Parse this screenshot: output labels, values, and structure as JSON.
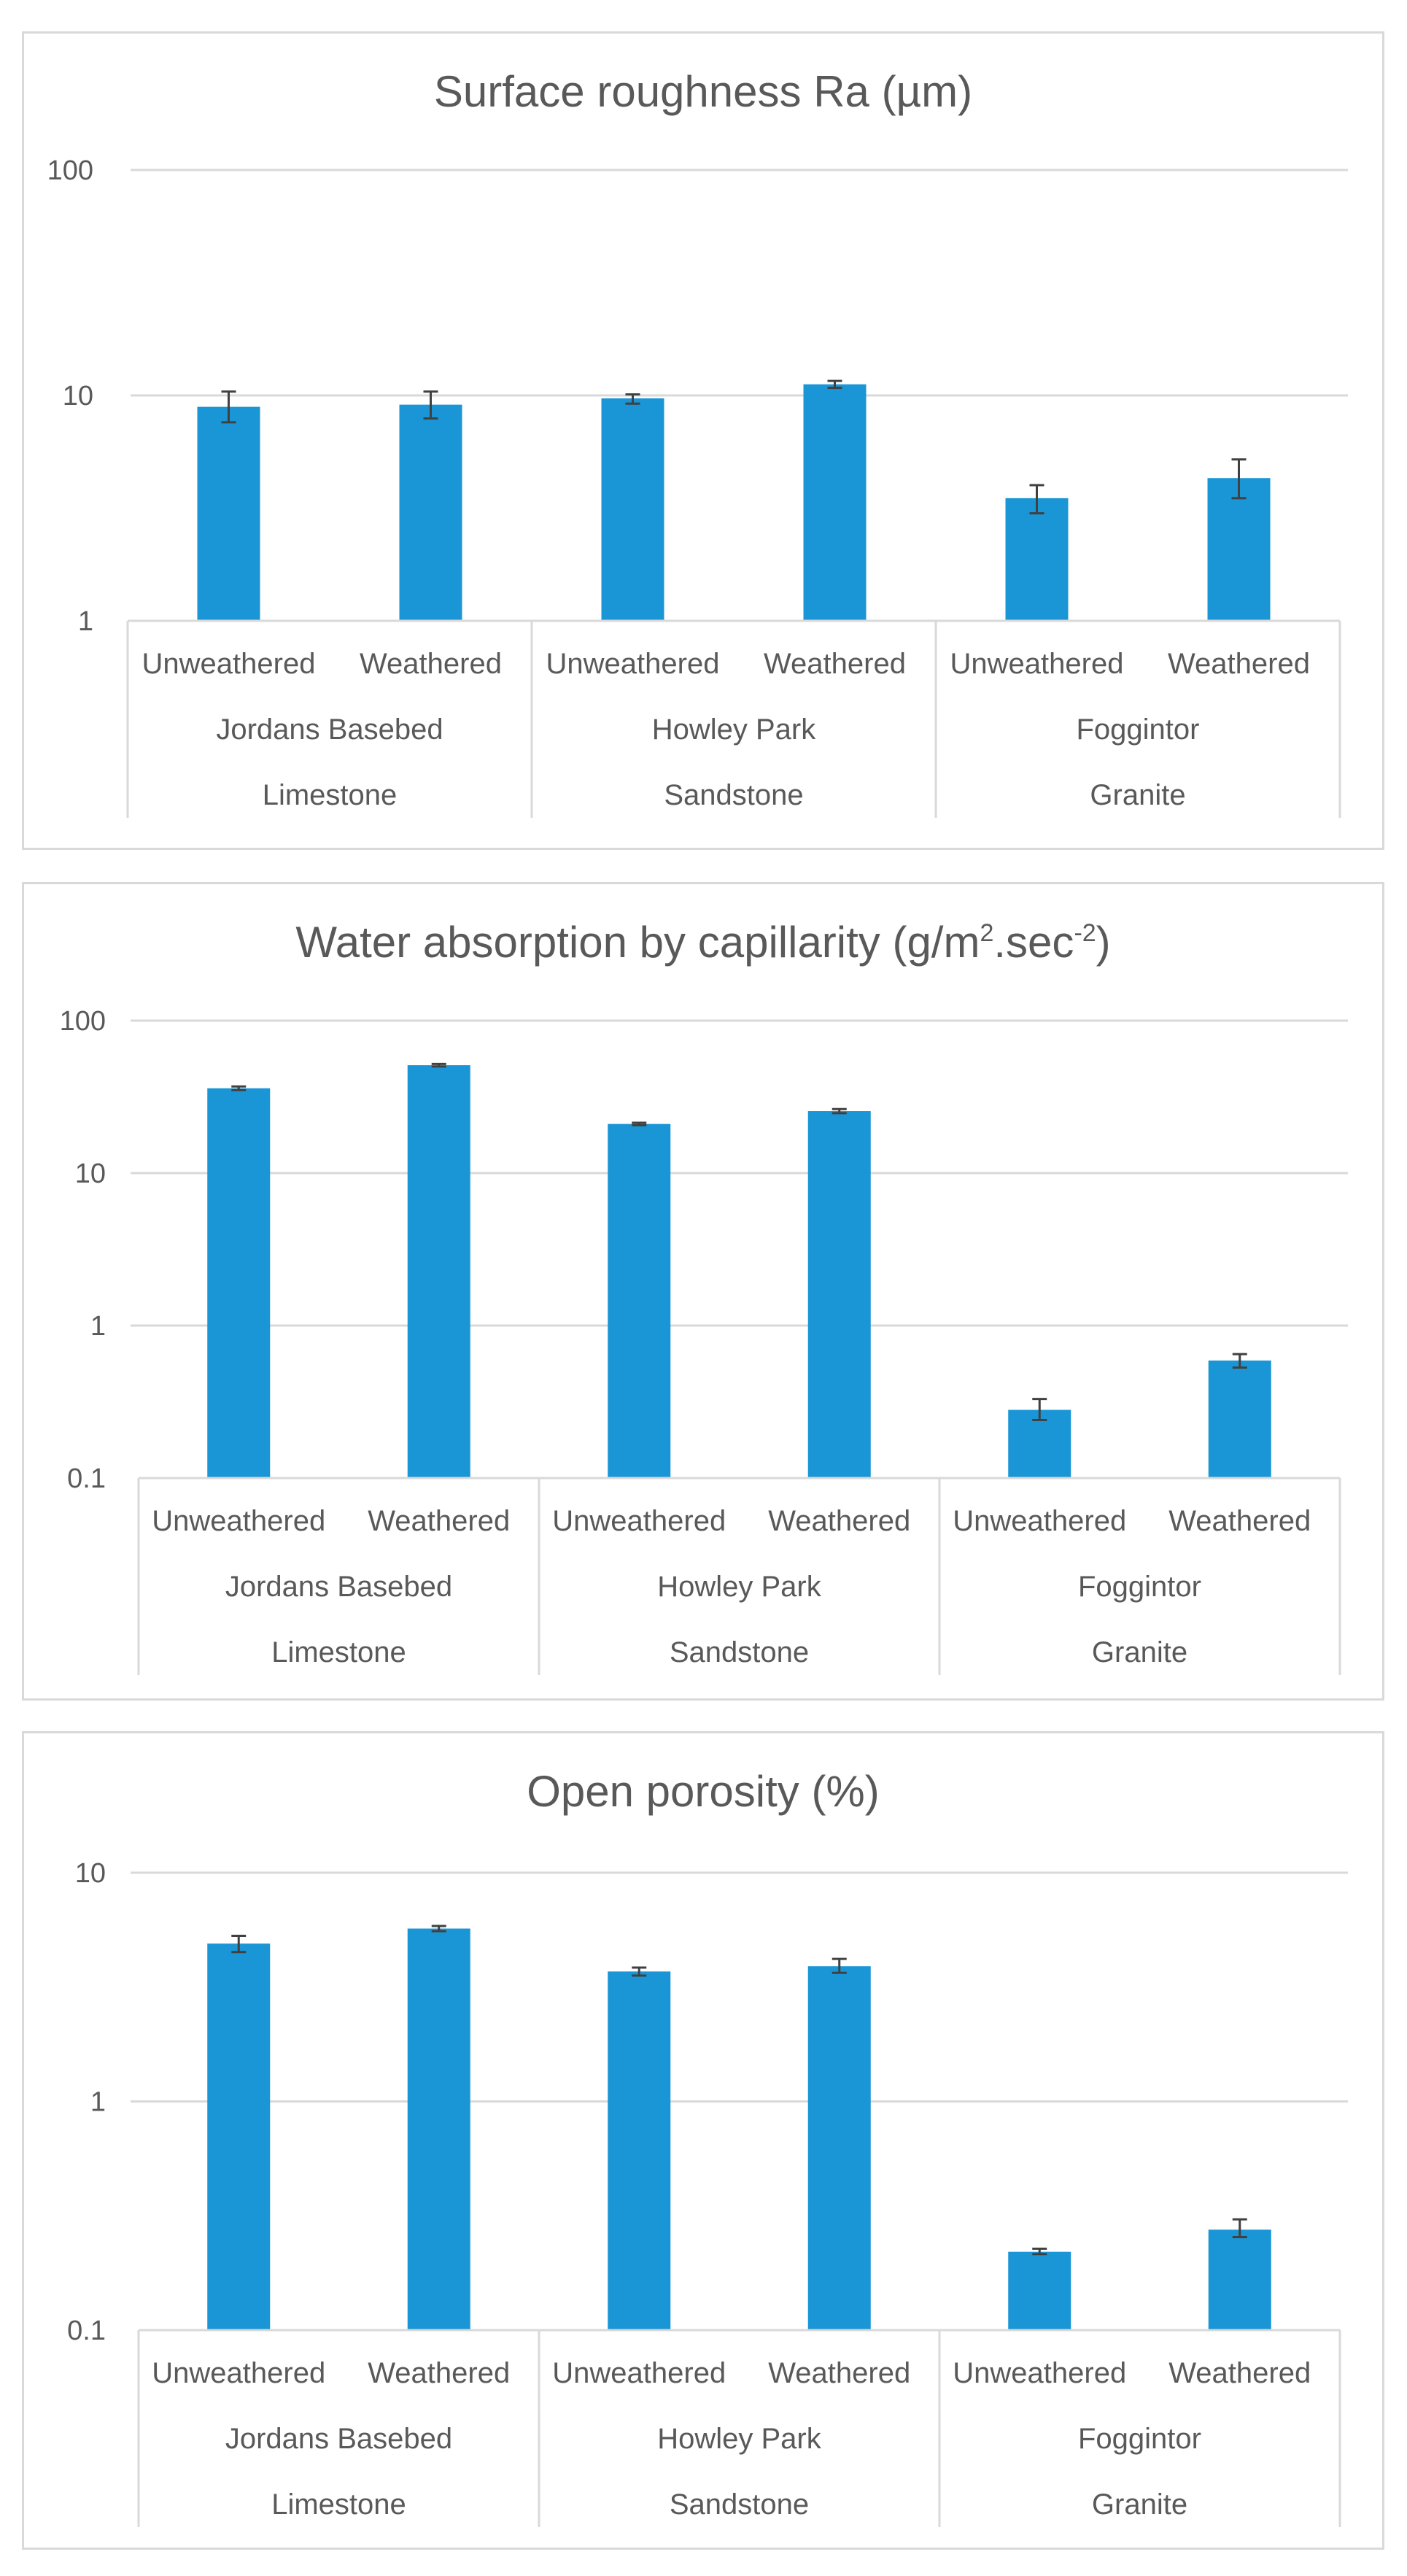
{
  "colors": {
    "bar": "#1a96d6",
    "grid": "#d9d9d9",
    "text": "#595959",
    "errorbar": "#404040",
    "border": "#d9d9d9"
  },
  "chart_data": [
    {
      "type": "bar",
      "scale": "log",
      "title": "Surface roughness Ra (µm)",
      "ylim": [
        1,
        100
      ],
      "yticks": [
        1,
        10,
        100
      ],
      "ytick_labels": [
        "1",
        "10",
        "100"
      ],
      "levels": {
        "sub": [
          "Unweathered",
          "Weathered",
          "Unweathered",
          "Weathered",
          "Unweathered",
          "Weathered"
        ],
        "site": [
          "Jordans Basebed",
          "Howley Park",
          "Foggintor"
        ],
        "stone": [
          "Limestone",
          "Sandstone",
          "Granite"
        ]
      },
      "values": [
        8.9,
        9.1,
        9.7,
        11.2,
        3.5,
        4.3
      ],
      "err_low": [
        7.6,
        7.9,
        9.2,
        10.8,
        3.0,
        3.5
      ],
      "err_high": [
        10.4,
        10.4,
        10.1,
        11.6,
        4.0,
        5.2
      ]
    },
    {
      "type": "bar",
      "scale": "log",
      "title": "Water absorption by capillarity (g/m",
      "title_sup1": "2",
      "title_mid": ".sec",
      "title_sup2": "-2",
      "title_end": ")",
      "ylim": [
        0.1,
        100
      ],
      "yticks": [
        0.1,
        1,
        10,
        100
      ],
      "ytick_labels": [
        "0.1",
        "1",
        "10",
        "100"
      ],
      "levels": {
        "sub": [
          "Unweathered",
          "Weathered",
          "Unweathered",
          "Weathered",
          "Unweathered",
          "Weathered"
        ],
        "site": [
          "Jordans Basebed",
          "Howley Park",
          "Foggintor"
        ],
        "stone": [
          "Limestone",
          "Sandstone",
          "Granite"
        ]
      },
      "values": [
        36,
        51,
        21,
        25.5,
        0.28,
        0.59
      ],
      "err_low": [
        35,
        50,
        20.6,
        24.7,
        0.24,
        0.53
      ],
      "err_high": [
        37,
        52,
        21.4,
        26.3,
        0.33,
        0.65
      ]
    },
    {
      "type": "bar",
      "scale": "log",
      "title": "Open porosity (%)",
      "ylim": [
        0.1,
        10
      ],
      "yticks": [
        0.1,
        1,
        10
      ],
      "ytick_labels": [
        "0.1",
        "1",
        "10"
      ],
      "levels": {
        "sub": [
          "Unweathered",
          "Weathered",
          "Unweathered",
          "Weathered",
          "Unweathered",
          "Weathered"
        ],
        "site": [
          "Jordans Basebed",
          "Howley Park",
          "Foggintor"
        ],
        "stone": [
          "Limestone",
          "Sandstone",
          "Granite"
        ]
      },
      "values": [
        4.9,
        5.7,
        3.7,
        3.9,
        0.22,
        0.275
      ],
      "err_low": [
        4.5,
        5.55,
        3.55,
        3.65,
        0.215,
        0.255
      ],
      "err_high": [
        5.3,
        5.85,
        3.85,
        4.2,
        0.227,
        0.305
      ]
    }
  ]
}
